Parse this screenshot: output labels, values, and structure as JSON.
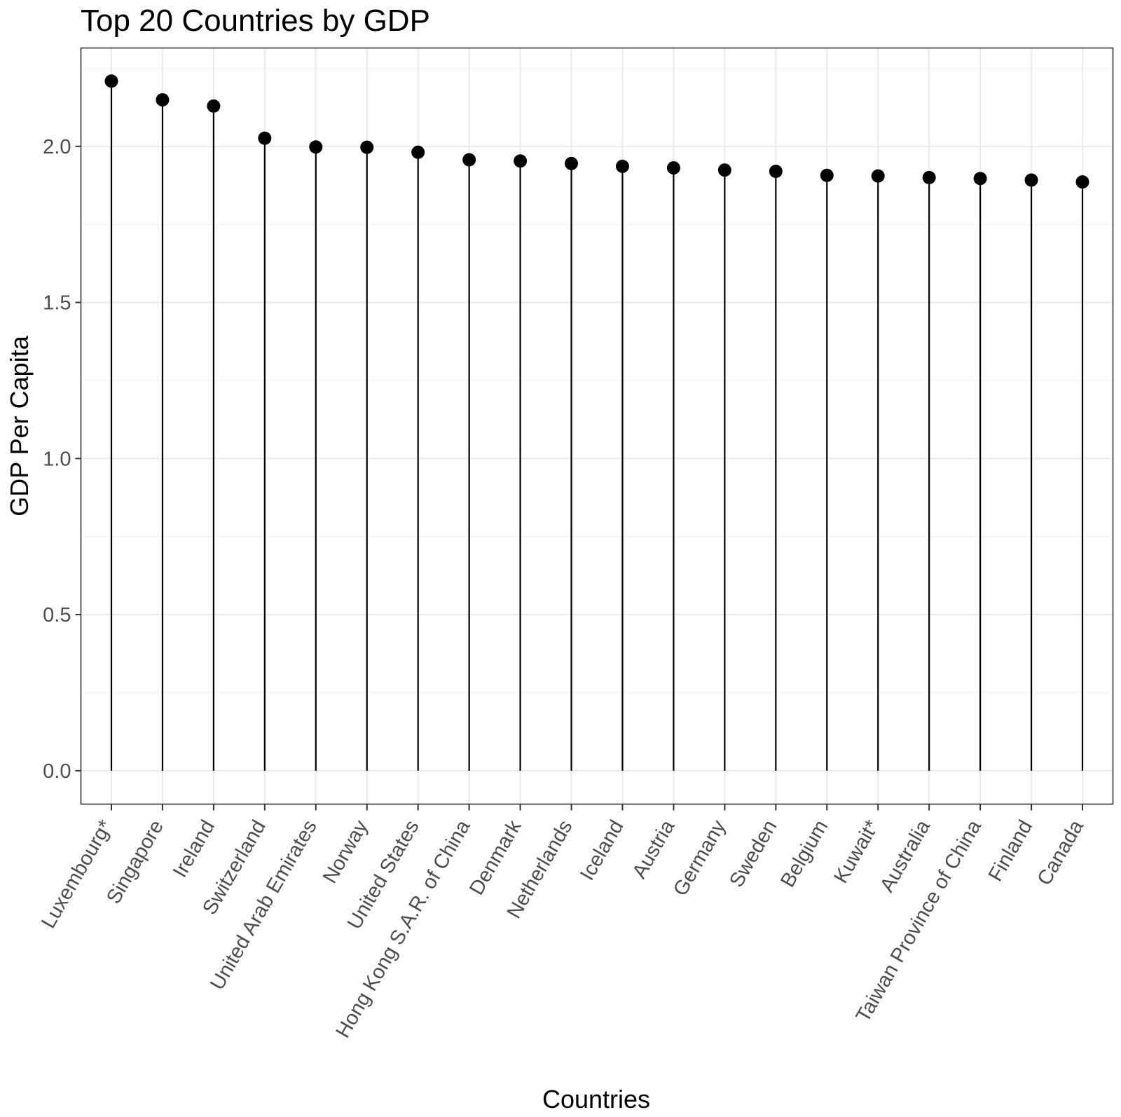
{
  "chart_data": {
    "type": "lollipop",
    "title": "Top 20 Countries by GDP",
    "xlabel": "Countries",
    "ylabel": "GDP Per Capita",
    "ylim": [
      -0.107,
      2.315
    ],
    "yticks": [
      "0.0",
      "0.5",
      "1.0",
      "1.5",
      "2.0"
    ],
    "ytick_values": [
      0.0,
      0.5,
      1.0,
      1.5,
      2.0
    ],
    "grid": true,
    "categories": [
      "Luxembourg*",
      "Singapore",
      "Ireland",
      "Switzerland",
      "United Arab Emirates",
      "Norway",
      "United States",
      "Hong Kong S.A.R. of China",
      "Denmark",
      "Netherlands",
      "Iceland",
      "Austria",
      "Germany",
      "Sweden",
      "Belgium",
      "Kuwait*",
      "Australia",
      "Taiwan Province of China",
      "Finland",
      "Canada"
    ],
    "values": [
      2.209,
      2.149,
      2.129,
      2.026,
      1.998,
      1.997,
      1.981,
      1.957,
      1.953,
      1.945,
      1.936,
      1.931,
      1.924,
      1.92,
      1.907,
      1.905,
      1.9,
      1.897,
      1.892,
      1.886
    ],
    "colors": {
      "marker": "#000000",
      "stem": "#000000",
      "grid": "#ebebeb",
      "tick_text": "#4d4d4d"
    }
  }
}
